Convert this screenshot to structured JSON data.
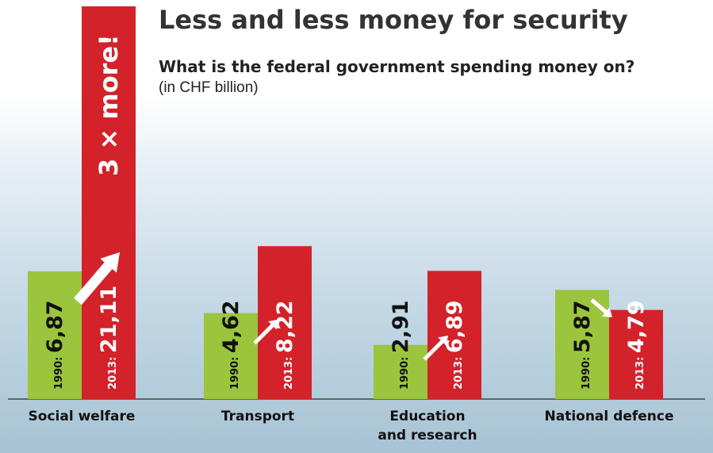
{
  "title": "Less and less money for security",
  "subtitle": "What is the federal government spending money on?",
  "unit_note": "(in CHF billion)",
  "callout": "3 × more!",
  "colors": {
    "y1990": "#9bc53d",
    "y2013": "#d3222a",
    "baseline": "#444444",
    "label": "#111111",
    "arrow": "#ffffff"
  },
  "chart_data": {
    "type": "bar",
    "title": "Less and less money for security",
    "subtitle": "What is the federal government spending money on?",
    "unit": "(in CHF billion)",
    "categories": [
      "Social welfare",
      "Transport",
      "Education and research",
      "National defence"
    ],
    "category_lines": [
      [
        "Social welfare"
      ],
      [
        "Transport"
      ],
      [
        "Education",
        "and research"
      ],
      [
        "National defence"
      ]
    ],
    "series": [
      {
        "name": "1990",
        "label_prefix": "1990:",
        "values": [
          6.87,
          4.62,
          2.91,
          5.87
        ],
        "display": [
          "6,87",
          "4,62",
          "2,91",
          "5,87"
        ]
      },
      {
        "name": "2013",
        "label_prefix": "2013:",
        "values": [
          21.11,
          8.22,
          6.89,
          4.79
        ],
        "display": [
          "21,11",
          "8,22",
          "6,89",
          "4,79"
        ]
      }
    ],
    "trend_arrows": [
      "up",
      "up",
      "up",
      "down"
    ],
    "ylim": [
      0,
      21.11
    ],
    "grid": false,
    "legend": "none"
  }
}
